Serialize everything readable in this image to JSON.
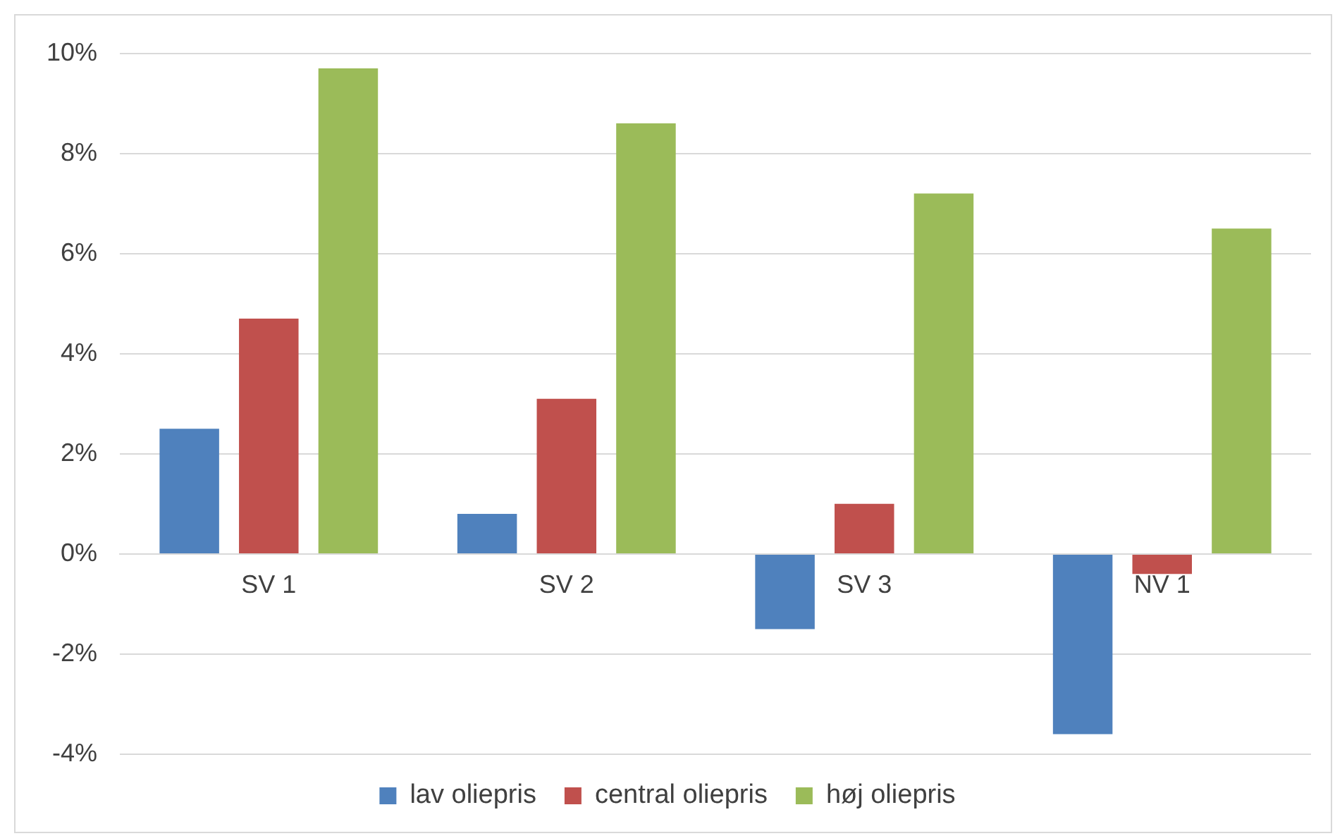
{
  "chart_data": {
    "type": "bar",
    "categories": [
      "SV 1",
      "SV 2",
      "SV 3",
      "NV 1"
    ],
    "series": [
      {
        "name": "lav oliepris",
        "color": "#4f81bd",
        "values": [
          2.5,
          0.8,
          -1.5,
          -3.6
        ]
      },
      {
        "name": "central oliepris",
        "color": "#c0504d",
        "values": [
          4.7,
          3.1,
          1.0,
          -0.4
        ]
      },
      {
        "name": "høj oliepris",
        "color": "#9bbb59",
        "values": [
          9.7,
          8.6,
          7.2,
          6.5
        ]
      }
    ],
    "ylim": [
      -4,
      10
    ],
    "yticks": [
      {
        "value": -4,
        "label": "-4%"
      },
      {
        "value": -2,
        "label": "-2%"
      },
      {
        "value": 0,
        "label": "0%"
      },
      {
        "value": 2,
        "label": "2%"
      },
      {
        "value": 4,
        "label": "4%"
      },
      {
        "value": 6,
        "label": "6%"
      },
      {
        "value": 8,
        "label": "8%"
      },
      {
        "value": 10,
        "label": "10%"
      }
    ],
    "grid": "y",
    "legend": "bottom"
  }
}
